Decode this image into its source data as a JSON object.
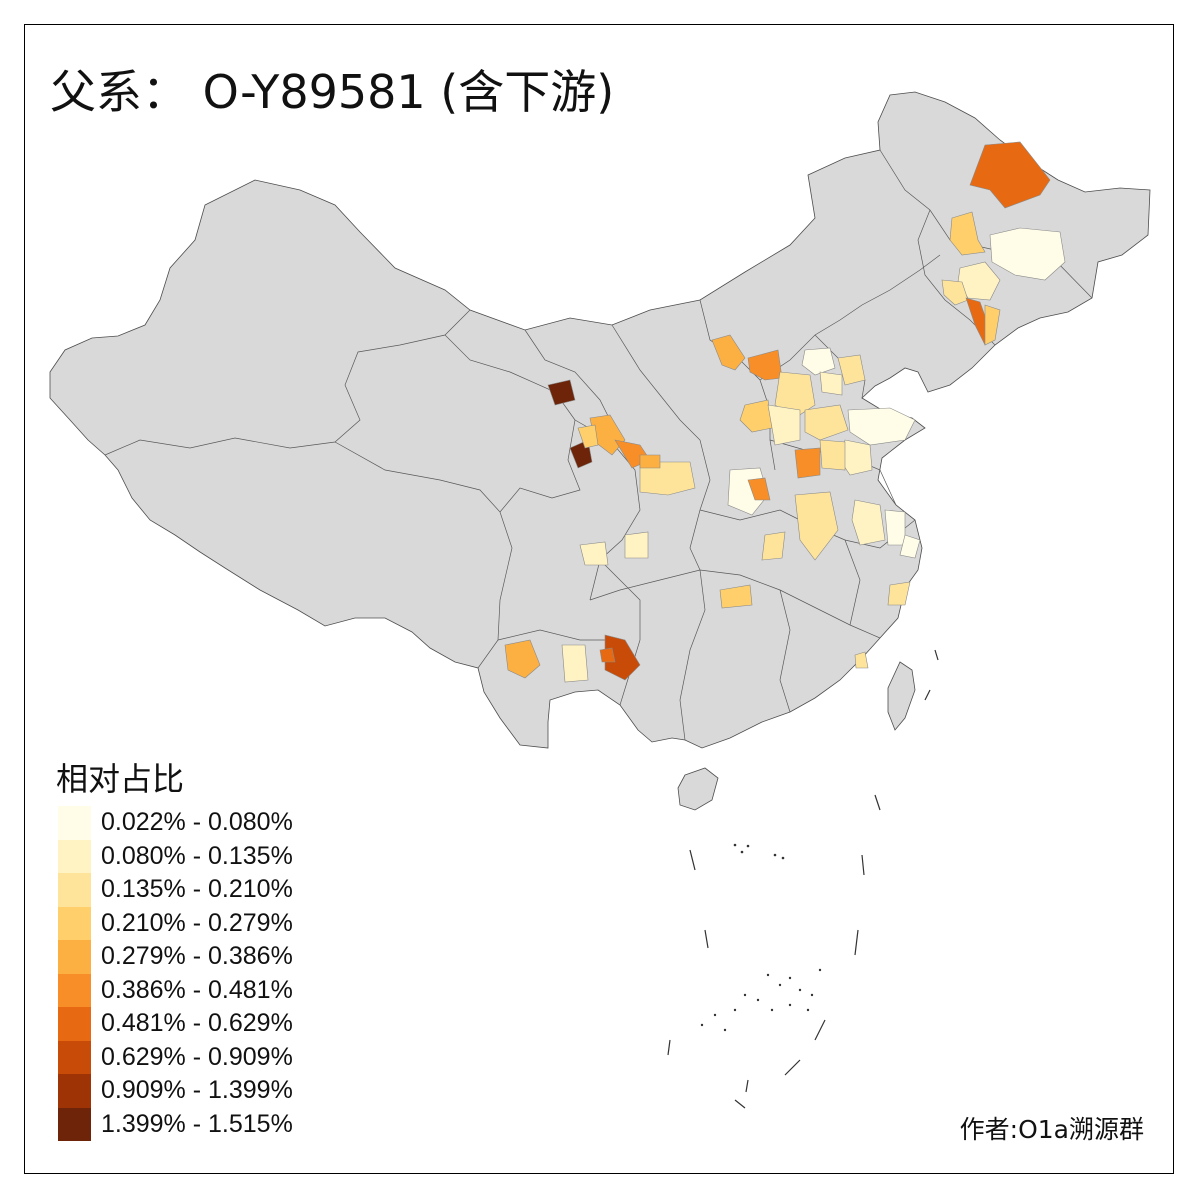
{
  "title": "父系： O-Y89581 (含下游)",
  "legend": {
    "title": "相对占比",
    "classes": [
      {
        "label": "0.022% - 0.080%",
        "color": "#fffde8"
      },
      {
        "label": "0.080% - 0.135%",
        "color": "#fff3c4"
      },
      {
        "label": "0.135% - 0.210%",
        "color": "#fee49b"
      },
      {
        "label": "0.210% - 0.279%",
        "color": "#fecf6a"
      },
      {
        "label": "0.279% - 0.386%",
        "color": "#fdb042"
      },
      {
        "label": "0.386% - 0.481%",
        "color": "#f88e27"
      },
      {
        "label": "0.481% - 0.629%",
        "color": "#e76a12"
      },
      {
        "label": "0.629% - 0.909%",
        "color": "#c84b08"
      },
      {
        "label": "0.909% - 1.399%",
        "color": "#9e3405"
      },
      {
        "label": "1.399% - 1.515%",
        "color": "#6d2408"
      }
    ]
  },
  "author": "作者:O1a溯源群",
  "colors": {
    "base_land": "#d9d9d9",
    "border": "#4d4d4d",
    "background": "#ffffff"
  }
}
